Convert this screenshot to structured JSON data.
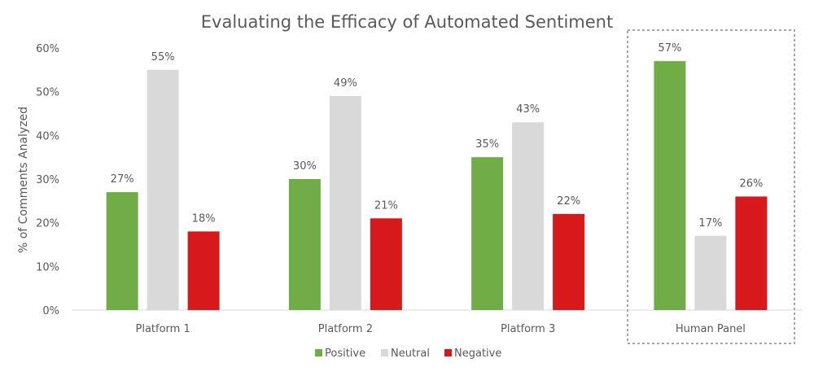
{
  "chart_data": {
    "type": "bar",
    "title": "Evaluating the Efficacy of Automated Sentiment",
    "ylabel": "% of Comments Analyzed",
    "xlabel": "",
    "ylim": [
      0,
      60
    ],
    "yticks": [
      "0%",
      "10%",
      "20%",
      "30%",
      "40%",
      "50%",
      "60%"
    ],
    "grid": false,
    "legend_position": "bottom",
    "categories": [
      "Platform 1",
      "Platform 2",
      "Platform 3",
      "Human Panel"
    ],
    "highlighted_category": "Human Panel",
    "series": [
      {
        "name": "Positive",
        "color": "#70ad47",
        "values": [
          27,
          30,
          35,
          57
        ],
        "labels": [
          "27%",
          "30%",
          "35%",
          "57%"
        ]
      },
      {
        "name": "Neutral",
        "color": "#d9d9d9",
        "values": [
          55,
          49,
          43,
          17
        ],
        "labels": [
          "55%",
          "49%",
          "43%",
          "17%"
        ]
      },
      {
        "name": "Negative",
        "color": "#d7191c",
        "values": [
          18,
          21,
          22,
          26
        ],
        "labels": [
          "18%",
          "21%",
          "22%",
          "26%"
        ]
      }
    ]
  }
}
